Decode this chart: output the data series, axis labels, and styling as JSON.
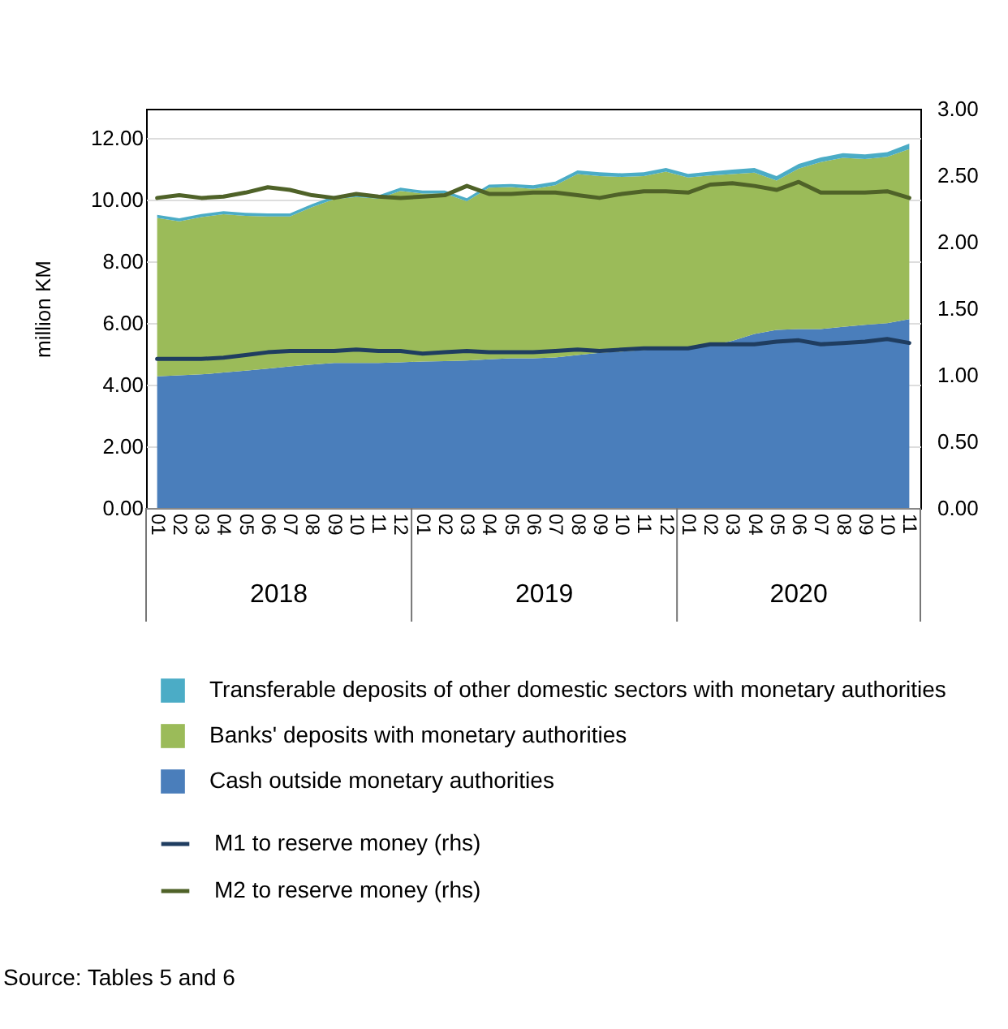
{
  "chart_data": {
    "type": "area",
    "stacked": true,
    "ylabel": "million KM",
    "categories": [
      "01",
      "02",
      "03",
      "04",
      "05",
      "06",
      "07",
      "08",
      "09",
      "10",
      "11",
      "12",
      "01",
      "02",
      "03",
      "04",
      "05",
      "06",
      "07",
      "08",
      "09",
      "10",
      "11",
      "12",
      "01",
      "02",
      "03",
      "04",
      "05",
      "06",
      "07",
      "08",
      "09",
      "10",
      "11"
    ],
    "series": [
      {
        "name": "Cash outside monetary authorities",
        "color": "#4a7ebb",
        "values": [
          4.27,
          4.3,
          4.33,
          4.39,
          4.45,
          4.52,
          4.59,
          4.65,
          4.7,
          4.7,
          4.7,
          4.72,
          4.75,
          4.76,
          4.78,
          4.82,
          4.85,
          4.85,
          4.88,
          4.96,
          5.03,
          5.07,
          5.12,
          5.17,
          5.22,
          5.27,
          5.42,
          5.64,
          5.77,
          5.8,
          5.8,
          5.87,
          5.94,
          5.99,
          6.12
        ]
      },
      {
        "name": "Banks' deposits with monetary authorities",
        "color": "#9bbb59",
        "values": [
          5.13,
          4.99,
          5.1,
          5.13,
          5.02,
          4.93,
          4.86,
          5.1,
          5.31,
          5.38,
          5.33,
          5.56,
          5.44,
          5.43,
          5.16,
          5.56,
          5.55,
          5.49,
          5.58,
          5.86,
          5.73,
          5.66,
          5.64,
          5.73,
          5.49,
          5.51,
          5.4,
          5.23,
          4.84,
          5.2,
          5.41,
          5.48,
          5.37,
          5.39,
          5.51
        ]
      },
      {
        "name": "Transferable deposits of other domestic sectors with monetary authorities",
        "color": "#4bacc6",
        "values": [
          0.1,
          0.1,
          0.1,
          0.1,
          0.1,
          0.1,
          0.1,
          0.1,
          0.1,
          0.1,
          0.1,
          0.1,
          0.1,
          0.1,
          0.1,
          0.1,
          0.1,
          0.12,
          0.12,
          0.12,
          0.12,
          0.12,
          0.12,
          0.12,
          0.12,
          0.12,
          0.15,
          0.15,
          0.15,
          0.15,
          0.15,
          0.15,
          0.15,
          0.15,
          0.18
        ]
      },
      {
        "name": "M1 to reserve money (rhs)",
        "type": "line",
        "axis": "y2",
        "color": "#1f3d60",
        "values": [
          1.12,
          1.12,
          1.12,
          1.13,
          1.15,
          1.17,
          1.18,
          1.18,
          1.18,
          1.19,
          1.18,
          1.18,
          1.16,
          1.17,
          1.18,
          1.17,
          1.17,
          1.17,
          1.18,
          1.19,
          1.18,
          1.19,
          1.2,
          1.2,
          1.2,
          1.23,
          1.23,
          1.23,
          1.25,
          1.26,
          1.23,
          1.24,
          1.25,
          1.27,
          1.24
        ]
      },
      {
        "name": "M2 to reserve money (rhs)",
        "type": "line",
        "axis": "y2",
        "color": "#4f6228",
        "values": [
          2.33,
          2.35,
          2.33,
          2.34,
          2.37,
          2.41,
          2.39,
          2.35,
          2.33,
          2.36,
          2.34,
          2.33,
          2.34,
          2.35,
          2.42,
          2.36,
          2.36,
          2.37,
          2.37,
          2.35,
          2.33,
          2.36,
          2.38,
          2.38,
          2.37,
          2.43,
          2.44,
          2.42,
          2.39,
          2.45,
          2.37,
          2.37,
          2.37,
          2.38,
          2.33
        ]
      }
    ],
    "ylim": [
      0,
      12.94
    ],
    "yticks": [
      {
        "value": 0,
        "label": "0.00"
      },
      {
        "value": 2,
        "label": "2.00"
      },
      {
        "value": 4,
        "label": "4.00"
      },
      {
        "value": 6,
        "label": "6.00"
      },
      {
        "value": 8,
        "label": "8.00"
      },
      {
        "value": 10,
        "label": "10.00"
      },
      {
        "value": 12,
        "label": "12.00"
      }
    ],
    "y2lim": [
      0,
      3
    ],
    "y2ticks": [
      {
        "value": 0,
        "label": "0.00"
      },
      {
        "value": 0.5,
        "label": "0.50"
      },
      {
        "value": 1,
        "label": "1.00"
      },
      {
        "value": 1.5,
        "label": "1.50"
      },
      {
        "value": 2,
        "label": "2.00"
      },
      {
        "value": 2.5,
        "label": "2.50"
      },
      {
        "value": 3,
        "label": "3.00"
      }
    ],
    "grid": "y",
    "legend": "bottom",
    "marker": "none",
    "line_style": "solid",
    "annotations": [
      "2018",
      "2019",
      "2020",
      "Source: Tables 5 and 6"
    ]
  }
}
